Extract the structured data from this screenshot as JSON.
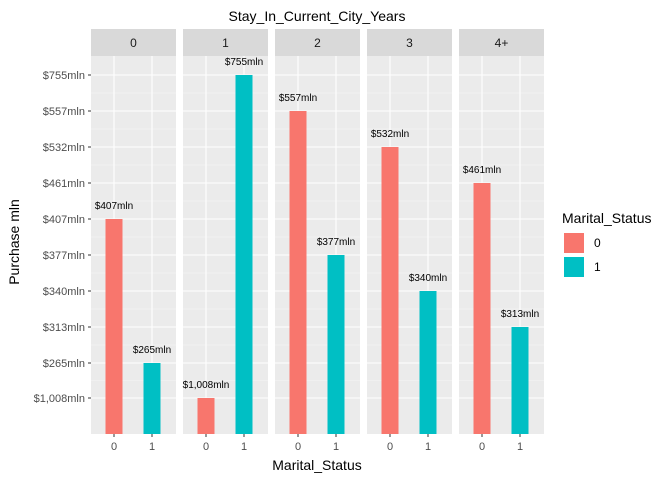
{
  "chart_data": {
    "type": "bar",
    "title": "Stay_In_Current_City_Years",
    "xlabel": "Marital_Status",
    "ylabel": "Purchase mln",
    "y_tick_labels": [
      "$1,008mln",
      "$265mln",
      "$313mln",
      "$340mln",
      "$377mln",
      "$407mln",
      "$461mln",
      "$532mln",
      "$557mln",
      "$755mln"
    ],
    "x_categories": [
      "0",
      "1"
    ],
    "legend": {
      "title": "Marital_Status",
      "placement": "right",
      "entries": [
        {
          "label": "0",
          "color": "#F8766D"
        },
        {
          "label": "1",
          "color": "#00BFC4"
        }
      ]
    },
    "facets": [
      {
        "label": "0",
        "bars": [
          {
            "marital_status": "0",
            "label": "$407mln",
            "level": 6
          },
          {
            "marital_status": "1",
            "label": "$265mln",
            "level": 2
          }
        ]
      },
      {
        "label": "1",
        "bars": [
          {
            "marital_status": "0",
            "label": "$1,008mln",
            "level": 1
          },
          {
            "marital_status": "1",
            "label": "$755mln",
            "level": 10
          }
        ]
      },
      {
        "label": "2",
        "bars": [
          {
            "marital_status": "0",
            "label": "$557mln",
            "level": 9
          },
          {
            "marital_status": "1",
            "label": "$377mln",
            "level": 5
          }
        ]
      },
      {
        "label": "3",
        "bars": [
          {
            "marital_status": "0",
            "label": "$532mln",
            "level": 8
          },
          {
            "marital_status": "1",
            "label": "$340mln",
            "level": 4
          }
        ]
      },
      {
        "label": "4+",
        "bars": [
          {
            "marital_status": "0",
            "label": "$461mln",
            "level": 7
          },
          {
            "marital_status": "1",
            "label": "$313mln",
            "level": 3
          }
        ]
      }
    ],
    "grid": true,
    "panel_background": "#EBEBEB",
    "strip_background": "#D9D9D9"
  }
}
